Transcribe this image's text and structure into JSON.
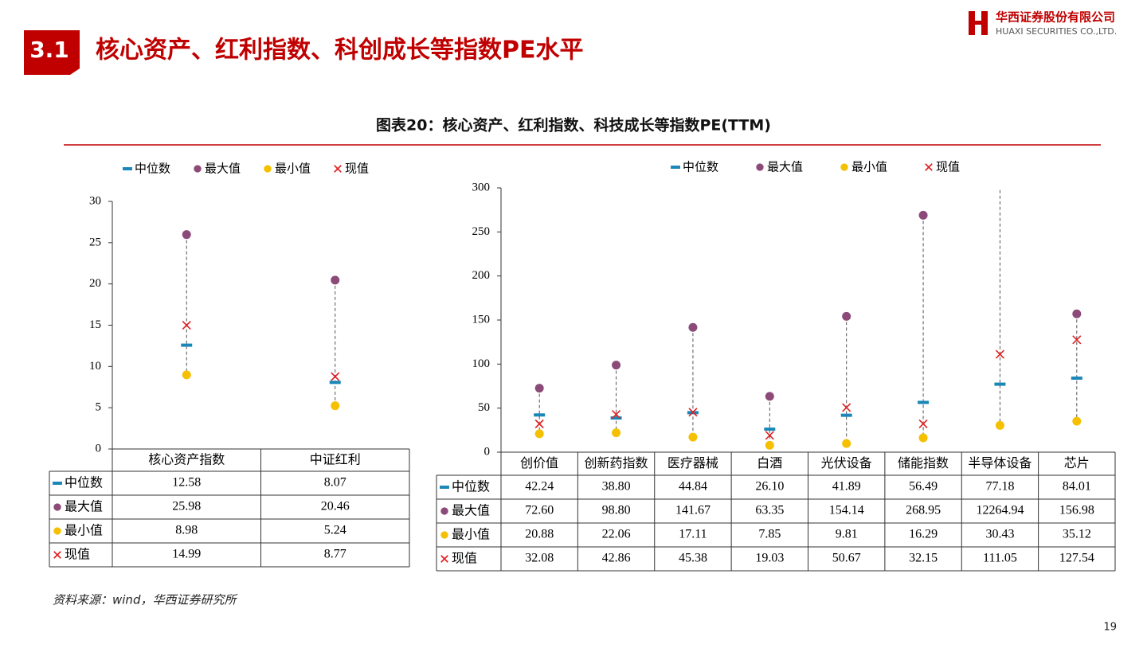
{
  "header": {
    "section": "3.1",
    "title": "核心资产、红利指数、科创成长等指数PE水平",
    "company": "华西证券股份有限公司",
    "company_en": "HUAXI SECURITIES CO.,LTD."
  },
  "figure_title": "图表20：核心资产、红利指数、科技成长等指数PE(TTM)",
  "source": "资料来源：wind，华西证券研究所",
  "page_number": "19",
  "chart_data": [
    {
      "type": "range-dot",
      "categories": [
        "核心资产指数",
        "中证红利"
      ],
      "ylim": [
        0,
        30
      ],
      "yticks": [
        0,
        5,
        10,
        15,
        20,
        25,
        30
      ],
      "series": [
        {
          "name": "中位数",
          "color": "#1a87b8",
          "marker": "dash",
          "values": [
            12.58,
            8.07
          ],
          "value_labels": [
            "12.58",
            "8.07"
          ]
        },
        {
          "name": "最大值",
          "color": "#8b4a78",
          "marker": "circle",
          "values": [
            25.98,
            20.46
          ],
          "value_labels": [
            "25.98",
            "20.46"
          ]
        },
        {
          "name": "最小值",
          "color": "#f5c000",
          "marker": "circle",
          "values": [
            8.98,
            5.24
          ],
          "value_labels": [
            "8.98",
            "5.24"
          ]
        },
        {
          "name": "现值",
          "color": "#e02020",
          "marker": "cross",
          "values": [
            14.99,
            8.77
          ],
          "value_labels": [
            "14.99",
            "8.77"
          ]
        }
      ]
    },
    {
      "type": "range-dot",
      "categories": [
        "创价值",
        "创新药指数",
        "医疗器械",
        "白酒",
        "光伏设备",
        "储能指数",
        "半导体设备",
        "芯片"
      ],
      "ylim": [
        0,
        300
      ],
      "yticks": [
        0,
        50,
        100,
        150,
        200,
        250,
        300
      ],
      "series": [
        {
          "name": "中位数",
          "color": "#1a87b8",
          "marker": "dash",
          "values": [
            42.24,
            38.8,
            44.84,
            26.1,
            41.89,
            56.49,
            77.18,
            84.01
          ],
          "value_labels": [
            "42.24",
            "38.80",
            "44.84",
            "26.10",
            "41.89",
            "56.49",
            "77.18",
            "84.01"
          ]
        },
        {
          "name": "最大值",
          "color": "#8b4a78",
          "marker": "circle",
          "values": [
            72.6,
            98.8,
            141.67,
            63.35,
            154.14,
            268.95,
            12264.94,
            156.98
          ],
          "value_labels": [
            "72.60",
            "98.80",
            "141.67",
            "63.35",
            "154.14",
            "268.95",
            "12264.94",
            "156.98"
          ]
        },
        {
          "name": "最小值",
          "color": "#f5c000",
          "marker": "circle",
          "values": [
            20.88,
            22.06,
            17.11,
            7.85,
            9.81,
            16.29,
            30.43,
            35.12
          ],
          "value_labels": [
            "20.88",
            "22.06",
            "17.11",
            "7.85",
            "9.81",
            "16.29",
            "30.43",
            "35.12"
          ]
        },
        {
          "name": "现值",
          "color": "#e02020",
          "marker": "cross",
          "values": [
            32.08,
            42.86,
            45.38,
            19.03,
            50.67,
            32.15,
            111.05,
            127.54
          ],
          "value_labels": [
            "32.08",
            "42.86",
            "45.38",
            "19.03",
            "50.67",
            "32.15",
            "111.05",
            "127.54"
          ]
        }
      ]
    }
  ]
}
